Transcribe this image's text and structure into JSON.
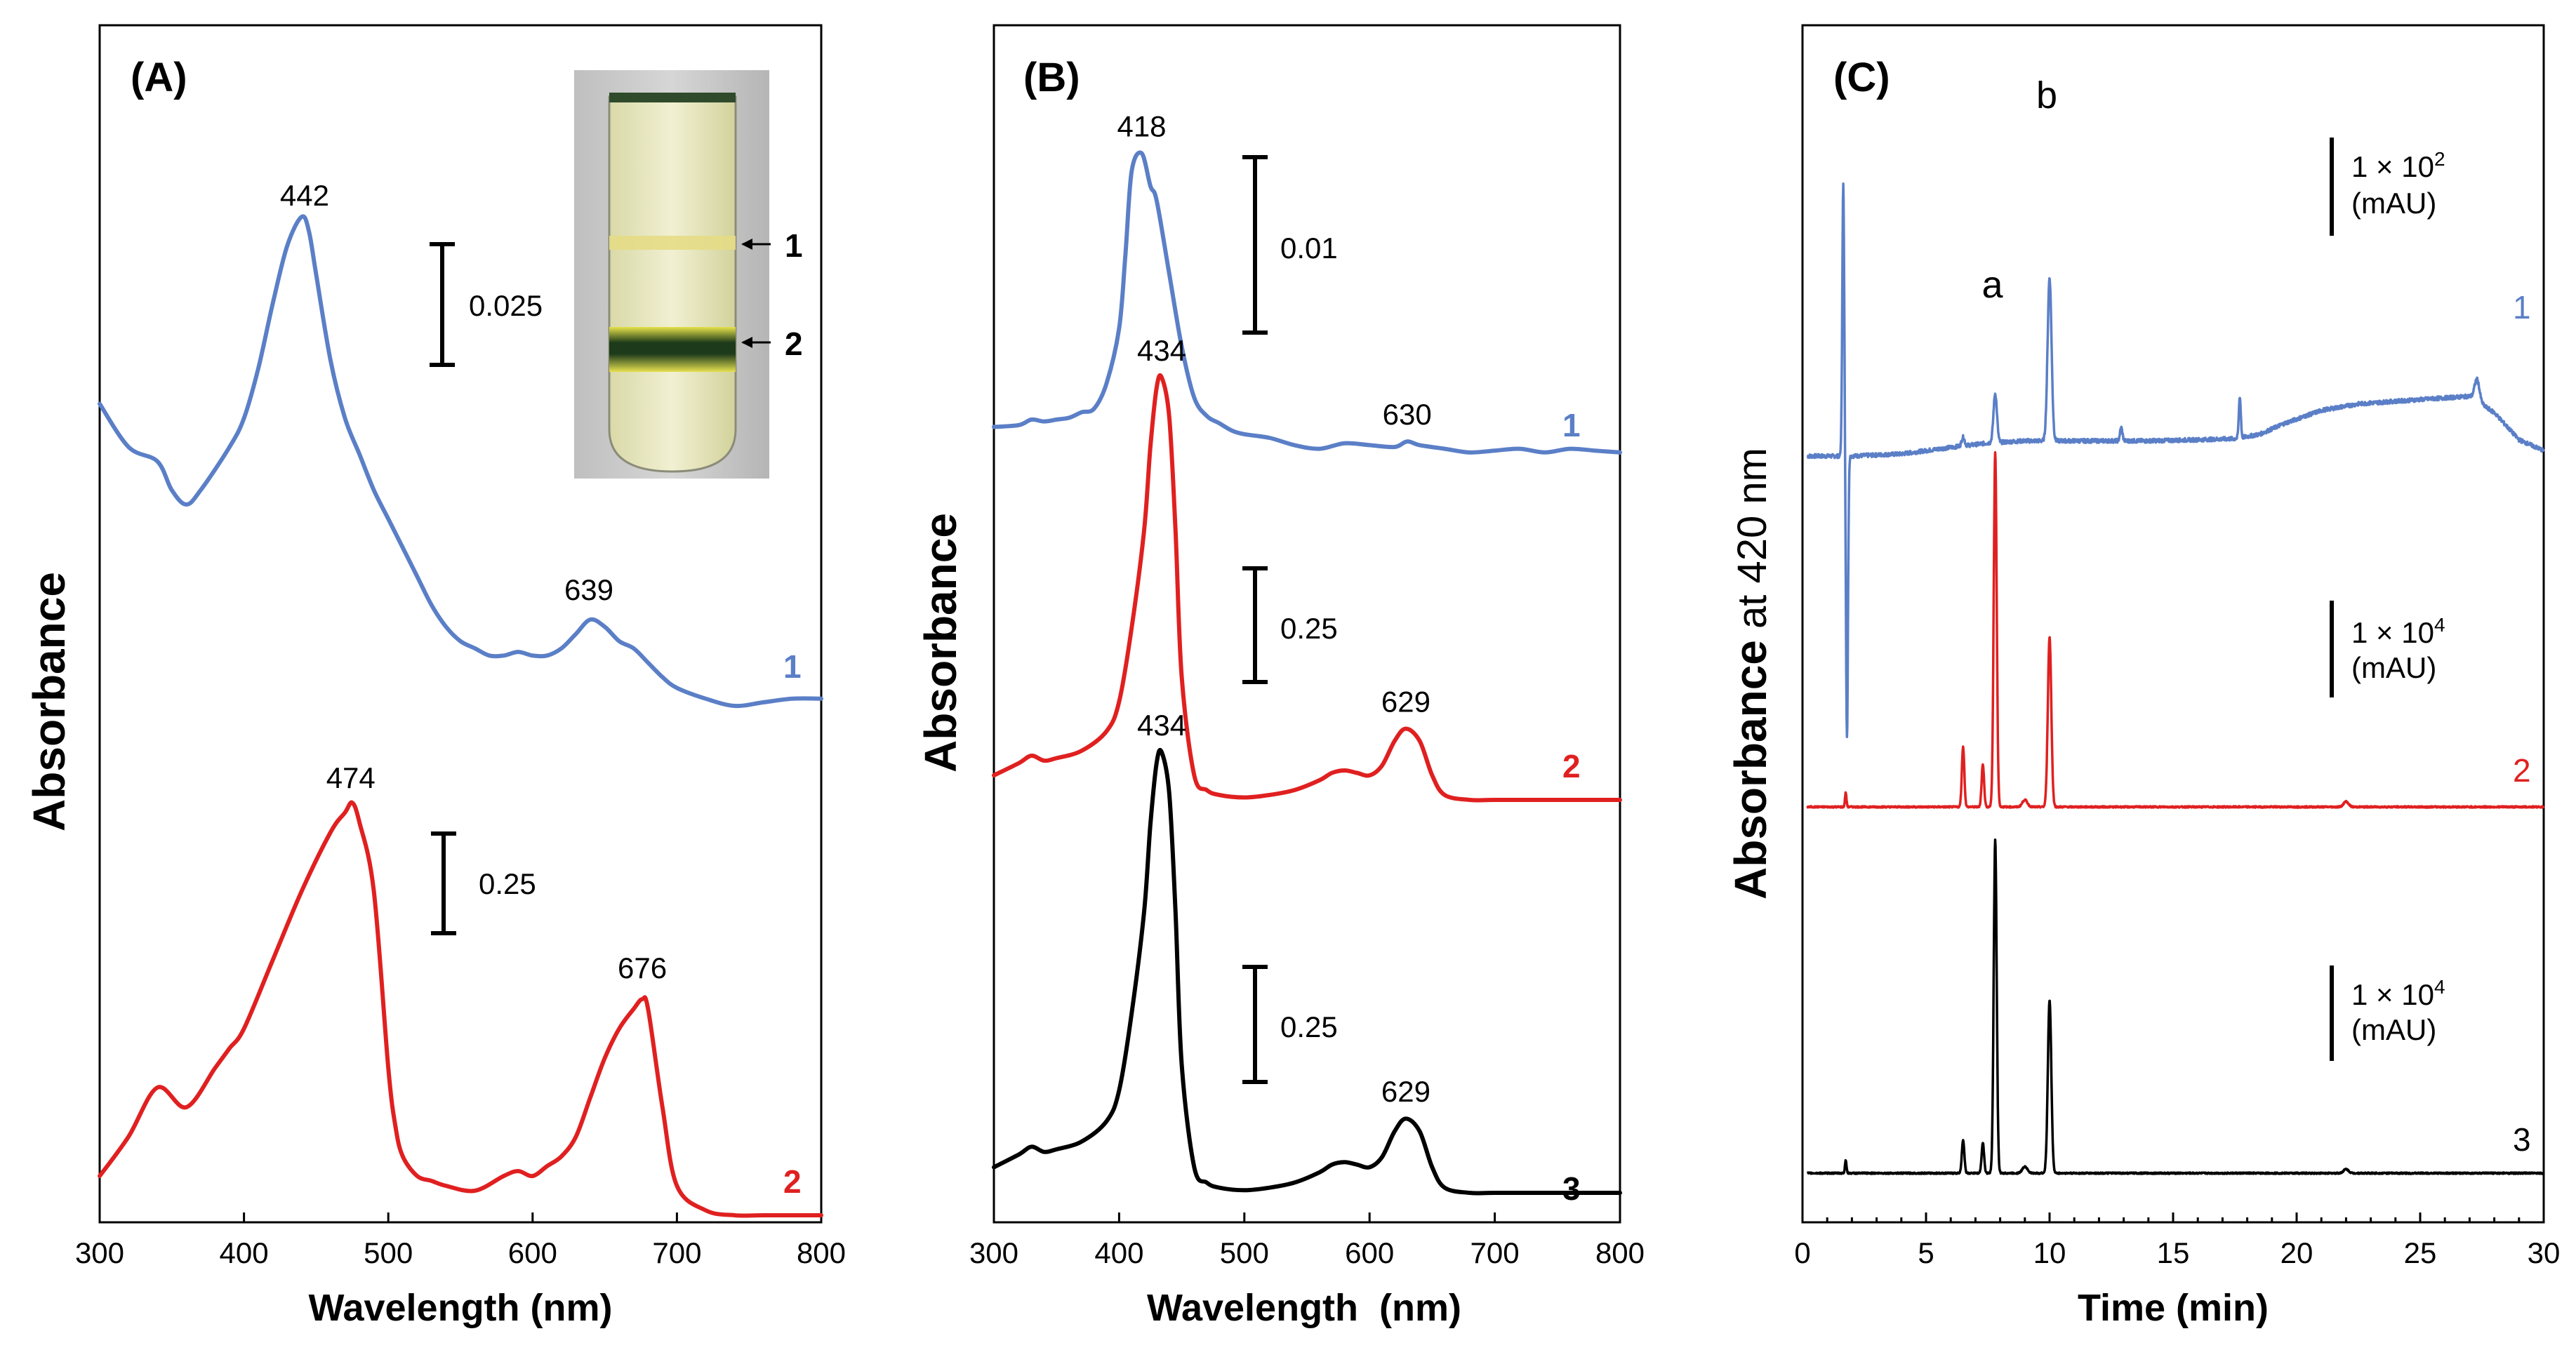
{
  "colors": {
    "blue": "#5b7fc7",
    "red": "#e02020",
    "black": "#000000"
  },
  "chart_data": [
    {
      "panel": "(A)",
      "type": "line",
      "xlabel": "Wavelength (nm)",
      "ylabel": "Absorbance",
      "xlim": [
        300,
        800
      ],
      "xticks": [
        300,
        400,
        500,
        600,
        700,
        800
      ],
      "series": [
        {
          "name": "1",
          "color": "#5b7fc7",
          "offset": 0.55,
          "x": [
            300,
            320,
            340,
            350,
            360,
            370,
            390,
            400,
            410,
            420,
            430,
            440,
            445,
            450,
            460,
            470,
            480,
            490,
            500,
            510,
            520,
            530,
            540,
            550,
            560,
            570,
            580,
            590,
            600,
            610,
            620,
            630,
            640,
            650,
            660,
            670,
            680,
            690,
            700,
            720,
            740,
            760,
            780,
            800
          ],
          "y": [
            0.42,
            0.36,
            0.34,
            0.3,
            0.28,
            0.3,
            0.36,
            0.4,
            0.47,
            0.56,
            0.64,
            0.68,
            0.66,
            0.6,
            0.48,
            0.4,
            0.35,
            0.3,
            0.26,
            0.22,
            0.18,
            0.14,
            0.11,
            0.09,
            0.08,
            0.07,
            0.07,
            0.075,
            0.07,
            0.07,
            0.08,
            0.1,
            0.12,
            0.11,
            0.09,
            0.08,
            0.06,
            0.04,
            0.025,
            0.01,
            0.0,
            0.005,
            0.01,
            0.01
          ]
        },
        {
          "name": "2",
          "color": "#e02020",
          "offset": 0.0,
          "x": [
            300,
            320,
            340,
            360,
            380,
            390,
            400,
            420,
            440,
            460,
            470,
            475,
            480,
            490,
            500,
            505,
            510,
            520,
            530,
            540,
            560,
            580,
            590,
            600,
            610,
            620,
            630,
            640,
            650,
            660,
            670,
            676,
            680,
            690,
            700,
            720,
            740,
            760,
            800
          ],
          "y": [
            0.04,
            0.08,
            0.13,
            0.11,
            0.15,
            0.17,
            0.19,
            0.26,
            0.33,
            0.39,
            0.41,
            0.42,
            0.4,
            0.33,
            0.15,
            0.09,
            0.06,
            0.04,
            0.035,
            0.03,
            0.025,
            0.04,
            0.045,
            0.04,
            0.05,
            0.06,
            0.08,
            0.12,
            0.16,
            0.19,
            0.21,
            0.22,
            0.21,
            0.11,
            0.03,
            0.005,
            0.0,
            0.0,
            0.0
          ]
        }
      ],
      "peak_labels": [
        {
          "text": "442",
          "x": 442,
          "series": "1"
        },
        {
          "text": "639",
          "x": 639,
          "series": "1"
        },
        {
          "text": "474",
          "x": 474,
          "series": "2"
        },
        {
          "text": "676",
          "x": 676,
          "series": "2"
        }
      ],
      "scale_bars": [
        {
          "label": "0.025"
        },
        {
          "label": "0.25"
        }
      ],
      "inset": {
        "description_labels": [
          "1",
          "2"
        ]
      }
    },
    {
      "panel": "(B)",
      "type": "line",
      "xlabel": "Wavelength  (nm)",
      "ylabel": "Absorbance",
      "xlim": [
        300,
        800
      ],
      "xticks": [
        300,
        400,
        500,
        600,
        700,
        800
      ],
      "series": [
        {
          "name": "1",
          "color": "#5b7fc7",
          "x": [
            300,
            320,
            330,
            340,
            350,
            360,
            370,
            380,
            390,
            400,
            405,
            410,
            418,
            425,
            430,
            440,
            450,
            460,
            470,
            480,
            490,
            500,
            520,
            540,
            560,
            580,
            600,
            620,
            630,
            640,
            660,
            680,
            700,
            720,
            740,
            760,
            780,
            800
          ],
          "y": [
            0.08,
            0.085,
            0.1,
            0.095,
            0.1,
            0.105,
            0.12,
            0.13,
            0.2,
            0.35,
            0.55,
            0.78,
            0.83,
            0.74,
            0.7,
            0.5,
            0.3,
            0.16,
            0.11,
            0.09,
            0.07,
            0.06,
            0.05,
            0.03,
            0.02,
            0.035,
            0.03,
            0.025,
            0.04,
            0.03,
            0.02,
            0.01,
            0.015,
            0.02,
            0.01,
            0.02,
            0.015,
            0.01
          ]
        },
        {
          "name": "2",
          "color": "#e02020",
          "x": [
            300,
            320,
            330,
            340,
            350,
            370,
            390,
            400,
            410,
            420,
            425,
            430,
            434,
            440,
            445,
            450,
            460,
            470,
            480,
            500,
            520,
            540,
            560,
            570,
            580,
            590,
            600,
            610,
            620,
            629,
            640,
            650,
            660,
            680,
            700,
            750,
            800
          ],
          "y": [
            0.05,
            0.075,
            0.09,
            0.08,
            0.085,
            0.1,
            0.14,
            0.2,
            0.35,
            0.55,
            0.72,
            0.84,
            0.86,
            0.78,
            0.55,
            0.25,
            0.05,
            0.02,
            0.01,
            0.005,
            0.01,
            0.02,
            0.04,
            0.055,
            0.06,
            0.055,
            0.05,
            0.07,
            0.12,
            0.145,
            0.12,
            0.05,
            0.01,
            0.0,
            0.0,
            0.0,
            0.0
          ]
        },
        {
          "name": "3",
          "color": "#000000",
          "x": [
            300,
            320,
            330,
            340,
            350,
            370,
            390,
            400,
            410,
            420,
            425,
            430,
            434,
            440,
            445,
            450,
            460,
            470,
            480,
            500,
            520,
            540,
            560,
            570,
            580,
            590,
            600,
            610,
            620,
            629,
            640,
            650,
            660,
            680,
            700,
            750,
            800
          ],
          "y": [
            0.05,
            0.075,
            0.09,
            0.08,
            0.085,
            0.1,
            0.14,
            0.2,
            0.35,
            0.55,
            0.72,
            0.84,
            0.86,
            0.78,
            0.55,
            0.25,
            0.05,
            0.02,
            0.01,
            0.005,
            0.01,
            0.02,
            0.04,
            0.055,
            0.06,
            0.055,
            0.05,
            0.07,
            0.12,
            0.145,
            0.12,
            0.05,
            0.01,
            0.0,
            0.0,
            0.0,
            0.0
          ]
        }
      ],
      "peak_labels": [
        {
          "text": "418",
          "x": 418,
          "series": "1"
        },
        {
          "text": "630",
          "x": 630,
          "series": "1"
        },
        {
          "text": "434",
          "x": 434,
          "series": "2"
        },
        {
          "text": "629",
          "x": 629,
          "series": "2"
        },
        {
          "text": "434",
          "x": 434,
          "series": "3"
        },
        {
          "text": "629",
          "x": 629,
          "series": "3"
        }
      ],
      "scale_bars": [
        {
          "label": "0.01"
        },
        {
          "label": "0.25"
        },
        {
          "label": "0.25"
        }
      ]
    },
    {
      "panel": "(C)",
      "type": "line",
      "xlabel": "Time (min)",
      "ylabel_bold": "Absorbance",
      "ylabel_rest": " at 420 nm",
      "xlim": [
        0,
        30
      ],
      "xticks": [
        0,
        5,
        10,
        15,
        20,
        25,
        30
      ],
      "peak_letters": [
        {
          "text": "a",
          "x": 7.8
        },
        {
          "text": "b",
          "x": 10.0
        }
      ],
      "scale_bars": [
        {
          "line1": "1 × 10",
          "sup": "2",
          "line2": "(mAU)"
        },
        {
          "line1": "1 × 10",
          "sup": "4",
          "line2": "(mAU)"
        },
        {
          "line1": "1 × 10",
          "sup": "4",
          "line2": "(mAU)"
        }
      ],
      "series": [
        {
          "name": "1",
          "color": "#5b7fc7",
          "baseline": [
            [
              0,
              0.0
            ],
            [
              2,
              0.0
            ],
            [
              4,
              0.02
            ],
            [
              6,
              0.08
            ],
            [
              7.5,
              0.12
            ],
            [
              9,
              0.14
            ],
            [
              11,
              0.14
            ],
            [
              14,
              0.14
            ],
            [
              16,
              0.15
            ],
            [
              17.5,
              0.16
            ],
            [
              18.5,
              0.2
            ],
            [
              19.5,
              0.3
            ],
            [
              21,
              0.42
            ],
            [
              22.5,
              0.48
            ],
            [
              25,
              0.52
            ],
            [
              27,
              0.55
            ],
            [
              28,
              0.4
            ],
            [
              29,
              0.15
            ],
            [
              30,
              0.05
            ]
          ],
          "peaks": [
            {
              "t": 1.65,
              "h": 2.5,
              "w": 0.04
            },
            {
              "t": 1.8,
              "h": -2.6,
              "w": 0.04
            },
            {
              "t": 6.5,
              "h": 0.08,
              "w": 0.06
            },
            {
              "t": 7.8,
              "h": 0.45,
              "w": 0.07
            },
            {
              "t": 10.0,
              "h": 1.5,
              "w": 0.08
            },
            {
              "t": 12.9,
              "h": 0.12,
              "w": 0.05
            },
            {
              "t": 17.7,
              "h": 0.38,
              "w": 0.04
            },
            {
              "t": 27.3,
              "h": 0.2,
              "w": 0.1
            }
          ],
          "noise": 0.018
        },
        {
          "name": "2",
          "color": "#e02020",
          "baseline": [
            [
              0,
              0.0
            ],
            [
              30,
              0.0
            ]
          ],
          "peaks": [
            {
              "t": 1.75,
              "h": 0.04,
              "w": 0.03
            },
            {
              "t": 6.5,
              "h": 0.17,
              "w": 0.05
            },
            {
              "t": 7.3,
              "h": 0.12,
              "w": 0.05
            },
            {
              "t": 7.8,
              "h": 1.0,
              "w": 0.06
            },
            {
              "t": 10.0,
              "h": 0.48,
              "w": 0.07
            },
            {
              "t": 9.0,
              "h": 0.02,
              "w": 0.1
            },
            {
              "t": 22,
              "h": 0.015,
              "w": 0.1
            }
          ],
          "noise": 0.002
        },
        {
          "name": "3",
          "color": "#000000",
          "baseline": [
            [
              0,
              0.0
            ],
            [
              30,
              0.0
            ]
          ],
          "peaks": [
            {
              "t": 1.75,
              "h": 0.04,
              "w": 0.03
            },
            {
              "t": 6.5,
              "h": 0.1,
              "w": 0.05
            },
            {
              "t": 7.3,
              "h": 0.09,
              "w": 0.05
            },
            {
              "t": 7.8,
              "h": 1.0,
              "w": 0.06
            },
            {
              "t": 10.0,
              "h": 0.52,
              "w": 0.07
            },
            {
              "t": 9.0,
              "h": 0.02,
              "w": 0.1
            },
            {
              "t": 22,
              "h": 0.012,
              "w": 0.1
            }
          ],
          "noise": 0.002
        }
      ]
    }
  ]
}
